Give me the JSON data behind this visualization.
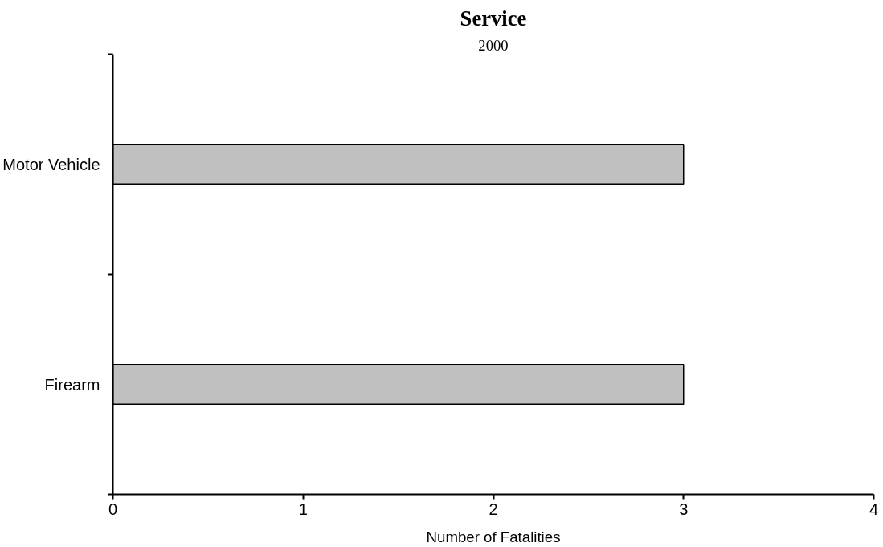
{
  "chart_data": {
    "type": "bar",
    "orientation": "horizontal",
    "title": "Service",
    "subtitle": "2000",
    "xlabel": "Number of Fatalities",
    "categories": [
      "Motor Vehicle",
      "Firearm"
    ],
    "values": [
      3,
      3
    ],
    "color": "#c0c0c0",
    "xlim": [
      0,
      4
    ],
    "xticks": [
      0,
      1,
      2,
      3,
      4
    ],
    "grid": false
  }
}
